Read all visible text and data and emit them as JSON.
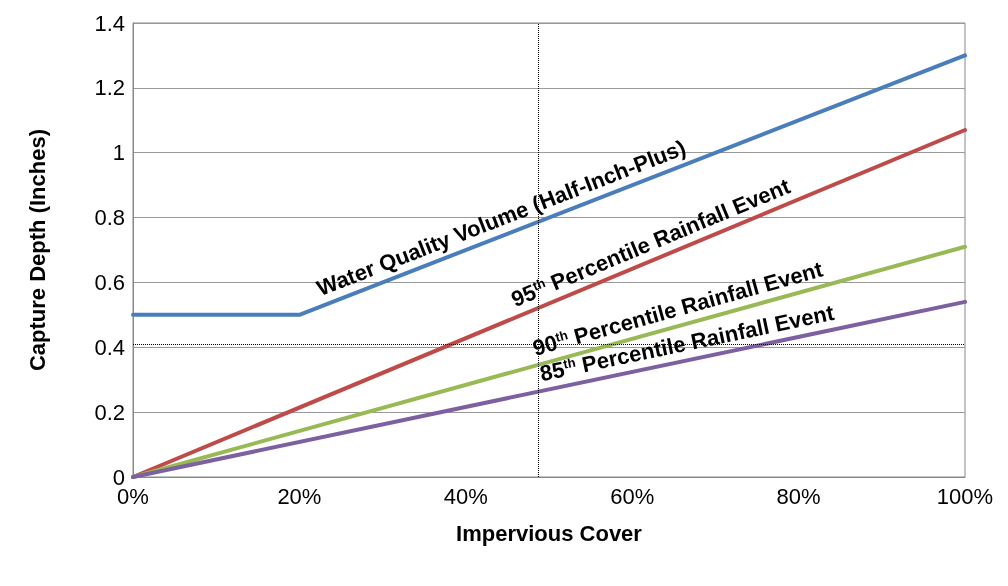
{
  "chart_data": {
    "type": "line",
    "xlabel": "Impervious Cover",
    "ylabel": "Capture Depth (Inches)",
    "xlim": [
      0,
      100
    ],
    "xticks": [
      {
        "value": 0,
        "label": "0%"
      },
      {
        "value": 20,
        "label": "20%"
      },
      {
        "value": 40,
        "label": "40%"
      },
      {
        "value": 60,
        "label": "60%"
      },
      {
        "value": 80,
        "label": "80%"
      },
      {
        "value": 100,
        "label": "100%"
      }
    ],
    "ylim": [
      0,
      1.4
    ],
    "yticks": [
      0,
      0.2,
      0.4,
      0.6,
      0.8,
      1,
      1.2,
      1.4
    ],
    "grid": "y",
    "legend": false,
    "marker": "none",
    "line_style": "solid",
    "series": [
      {
        "name": "Water Quality Volume (Half-Inch-Plus)",
        "color": "#4a7ebb",
        "x": [
          0,
          20,
          100
        ],
        "values": [
          0.5,
          0.5,
          1.3
        ]
      },
      {
        "name": "95$^{th}$ Percentile Rainfall Event",
        "color": "#be4b48",
        "x": [
          0,
          100
        ],
        "values": [
          0,
          1.07
        ]
      },
      {
        "name": "90$^{th}$ Percentile Rainfall Event",
        "color": "#98b954",
        "x": [
          0,
          100
        ],
        "values": [
          0,
          0.71
        ]
      },
      {
        "name": "85$^{th}$ Percentile Rainfall Event",
        "color": "#7d60a0",
        "x": [
          0,
          100
        ],
        "values": [
          0,
          0.54
        ]
      }
    ],
    "ref_lines": [
      {
        "axis": "x",
        "value": 48.7,
        "color": "#000000",
        "line_style": "dotted"
      },
      {
        "axis": "y",
        "value": 0.41,
        "color": "#000000",
        "line_style": "dotted"
      }
    ]
  }
}
